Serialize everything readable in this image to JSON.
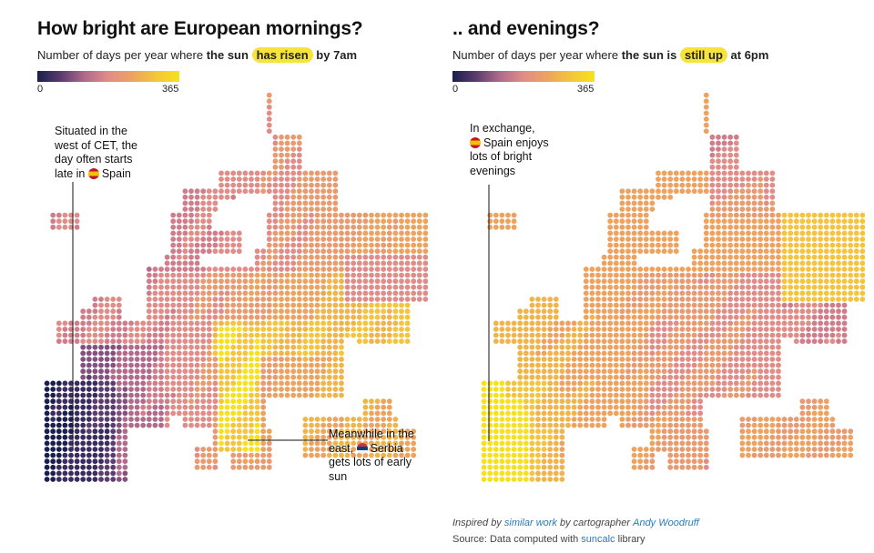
{
  "left_panel": {
    "title": "How bright are European mornings?",
    "subtitle_pre": "Number of days per year where ",
    "subtitle_bold": "the sun",
    "subtitle_highlight": "has risen",
    "subtitle_post": "by 7am",
    "legend": {
      "min": "0",
      "max": "365"
    },
    "annotation_spain": {
      "pre": "Situated in the west of CET, the day often starts late in",
      "flag_icon": "spain-flag-icon",
      "country": "Spain"
    },
    "annotation_serbia": {
      "pre": "Meanwhile in the east,",
      "flag_icon": "serbia-flag-icon",
      "country": "Serbia",
      "post": "gets lots of early sun"
    }
  },
  "right_panel": {
    "title": ".. and evenings?",
    "subtitle_pre": "Number of days per year where ",
    "subtitle_bold": "the sun is",
    "subtitle_highlight": "still up",
    "subtitle_post": "at 6pm",
    "legend": {
      "min": "0",
      "max": "365"
    },
    "annotation_spain": {
      "pre": "In exchange,",
      "flag_icon": "spain-flag-icon",
      "country": "Spain",
      "post": "enjoys lots of bright evenings"
    }
  },
  "footer": {
    "inspired_pre": "Inspired by",
    "inspired_link": "similar work",
    "inspired_mid": "by cartographer",
    "author_link": "Andy Woodruff",
    "source_pre": "Source: Data computed with",
    "source_link": "suncalc",
    "source_post": "library"
  },
  "colors": {
    "scale_low": "#1b1f4d",
    "scale_mid": "#e08c88",
    "scale_high": "#f6e21c",
    "highlight": "#f7e33a",
    "link": "#2a7ab8"
  }
}
